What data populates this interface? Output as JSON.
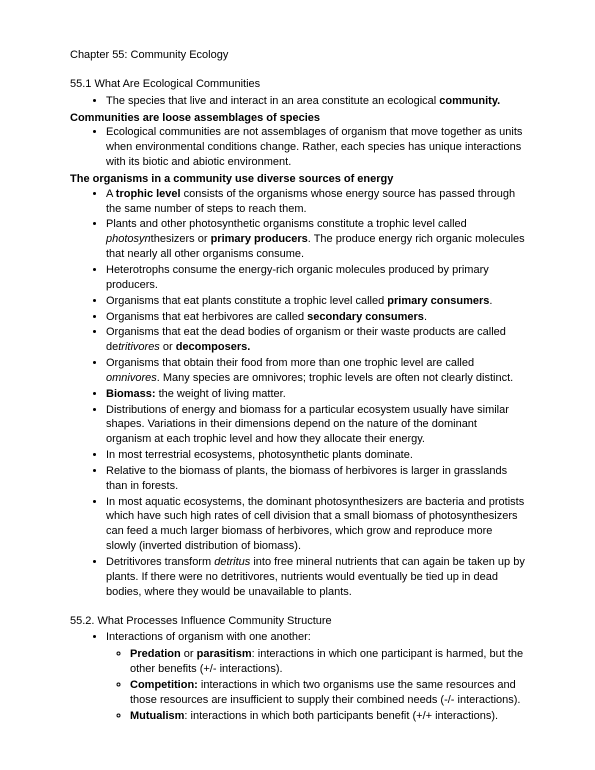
{
  "chapter_title": "Chapter 55: Community Ecology",
  "section1": {
    "title": "55.1 What Are Ecological Communities",
    "intro_bullet_pre": "The species that live and interact in an area constitute an ecological ",
    "intro_bullet_bold": "community.",
    "sub1_heading": "Communities are loose assemblages of species",
    "sub1_bullet": "Ecological communities are not assemblages of organism that move together as units when environmental conditions change. Rather, each species has unique interactions with its biotic and abiotic environment.",
    "sub2_heading": "The organisms in a community use diverse sources of energy",
    "b1_pre": "A ",
    "b1_bold": "trophic level",
    "b1_post": " consists of the organisms whose energy source has passed through the same number of steps to reach them.",
    "b2_pre": "Plants and other photosynthetic organisms constitute a trophic level called ",
    "b2_it": "photosyn",
    "b2_rest": "thesizers or ",
    "b2_bold": "primary producers",
    "b2_post": ". The produce energy rich organic molecules that nearly all other organisms consume.",
    "b3": "Heterotrophs consume the energy-rich organic molecules produced by primary producers.",
    "b4_pre": "Organisms that eat plants constitute a trophic level called ",
    "b4_bold": "primary consumers",
    "b4_post": ".",
    "b5_pre": "Organisms that eat herbivores are called ",
    "b5_bold": "secondary consumers",
    "b5_post": ".",
    "b6_pre": "Organisms that eat the dead bodies of organism or their waste products are called de",
    "b6_it": "tritivores",
    "b6_mid": " or ",
    "b6_bold": "decomposers.",
    "b7_pre": "Organisms that obtain their food from more than one trophic level are called ",
    "b7_it": "omnivores",
    "b7_post": ". Many species are omnivores; trophic levels are often not clearly distinct.",
    "b8_bold": "Biomass:",
    "b8_post": " the weight of living matter.",
    "b9": "Distributions of energy and biomass for a particular ecosystem usually have similar shapes. Variations in their dimensions depend on the nature of the dominant organism at each trophic level and how they allocate their energy.",
    "b10": "In most terrestrial ecosystems, photosynthetic plants dominate.",
    "b11": "Relative to the biomass of plants, the biomass of herbivores is larger in grasslands than in forests.",
    "b12": "In most aquatic ecosystems, the dominant photosynthesizers are bacteria and protists which have such high rates of cell division that a small biomass of photosynthesizers can feed a much larger biomass of herbivores, which grow and reproduce more slowly (inverted distribution of biomass).",
    "b13_pre": "Detritivores transform ",
    "b13_it": "detritus",
    "b13_post": " into free mineral nutrients that can again be taken up by plants. If there were no detritivores, nutrients would eventually be tied up in dead bodies, where they would be unavailable to plants."
  },
  "section2": {
    "title": "55.2. What Processes Influence Community Structure",
    "intro": "Interactions of organism with one another:",
    "s1_bold1": "Predation",
    "s1_mid": " or ",
    "s1_bold2": "parasitism",
    "s1_post": ": interactions in which one participant is harmed, but the other benefits (+/- interactions).",
    "s2_bold": "Competition:",
    "s2_post": " interactions in which two organisms use the same resources and those resources are insufficient to supply their combined needs (-/- interactions).",
    "s3_bold": "Mutualism",
    "s3_post": ": interactions in which both participants benefit (+/+ interactions)."
  }
}
